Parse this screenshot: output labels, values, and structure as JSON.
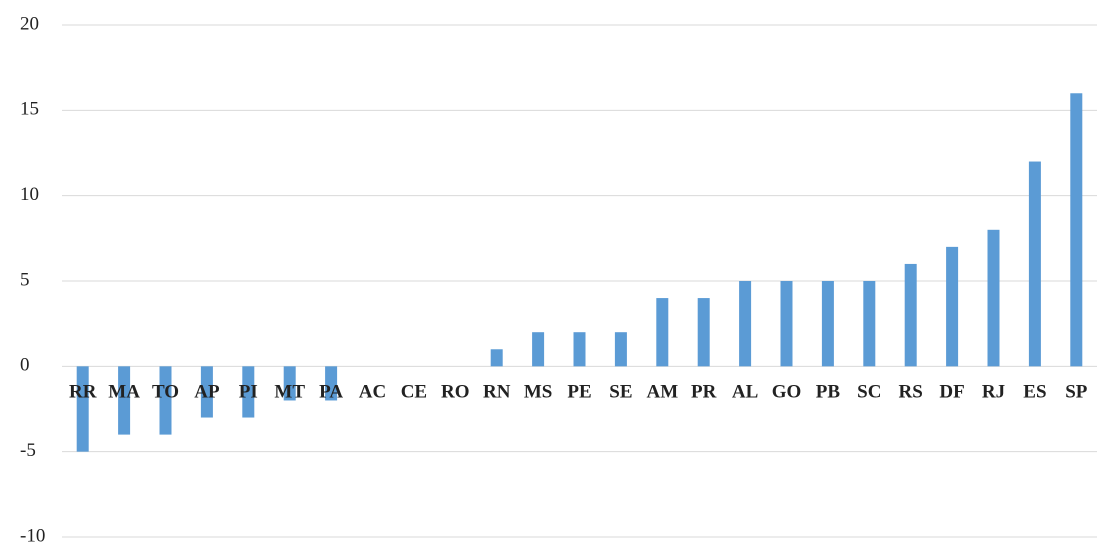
{
  "chart_data": {
    "type": "bar",
    "categories": [
      "RR",
      "MA",
      "TO",
      "AP",
      "PI",
      "MT",
      "PA",
      "AC",
      "CE",
      "RO",
      "RN",
      "MS",
      "PE",
      "SE",
      "AM",
      "PR",
      "AL",
      "GO",
      "PB",
      "SC",
      "RS",
      "DF",
      "RJ",
      "ES",
      "SP"
    ],
    "values": [
      -5,
      -4,
      -4,
      -3,
      -3,
      -2,
      -2,
      0,
      0,
      0,
      1,
      2,
      2,
      2,
      4,
      4,
      5,
      5,
      5,
      5,
      6,
      7,
      8,
      12,
      16
    ],
    "color": "#5b9bd5",
    "ylim": [
      -10,
      20
    ],
    "yticks": [
      -10,
      -5,
      0,
      5,
      10,
      15,
      20
    ],
    "grid": true
  }
}
